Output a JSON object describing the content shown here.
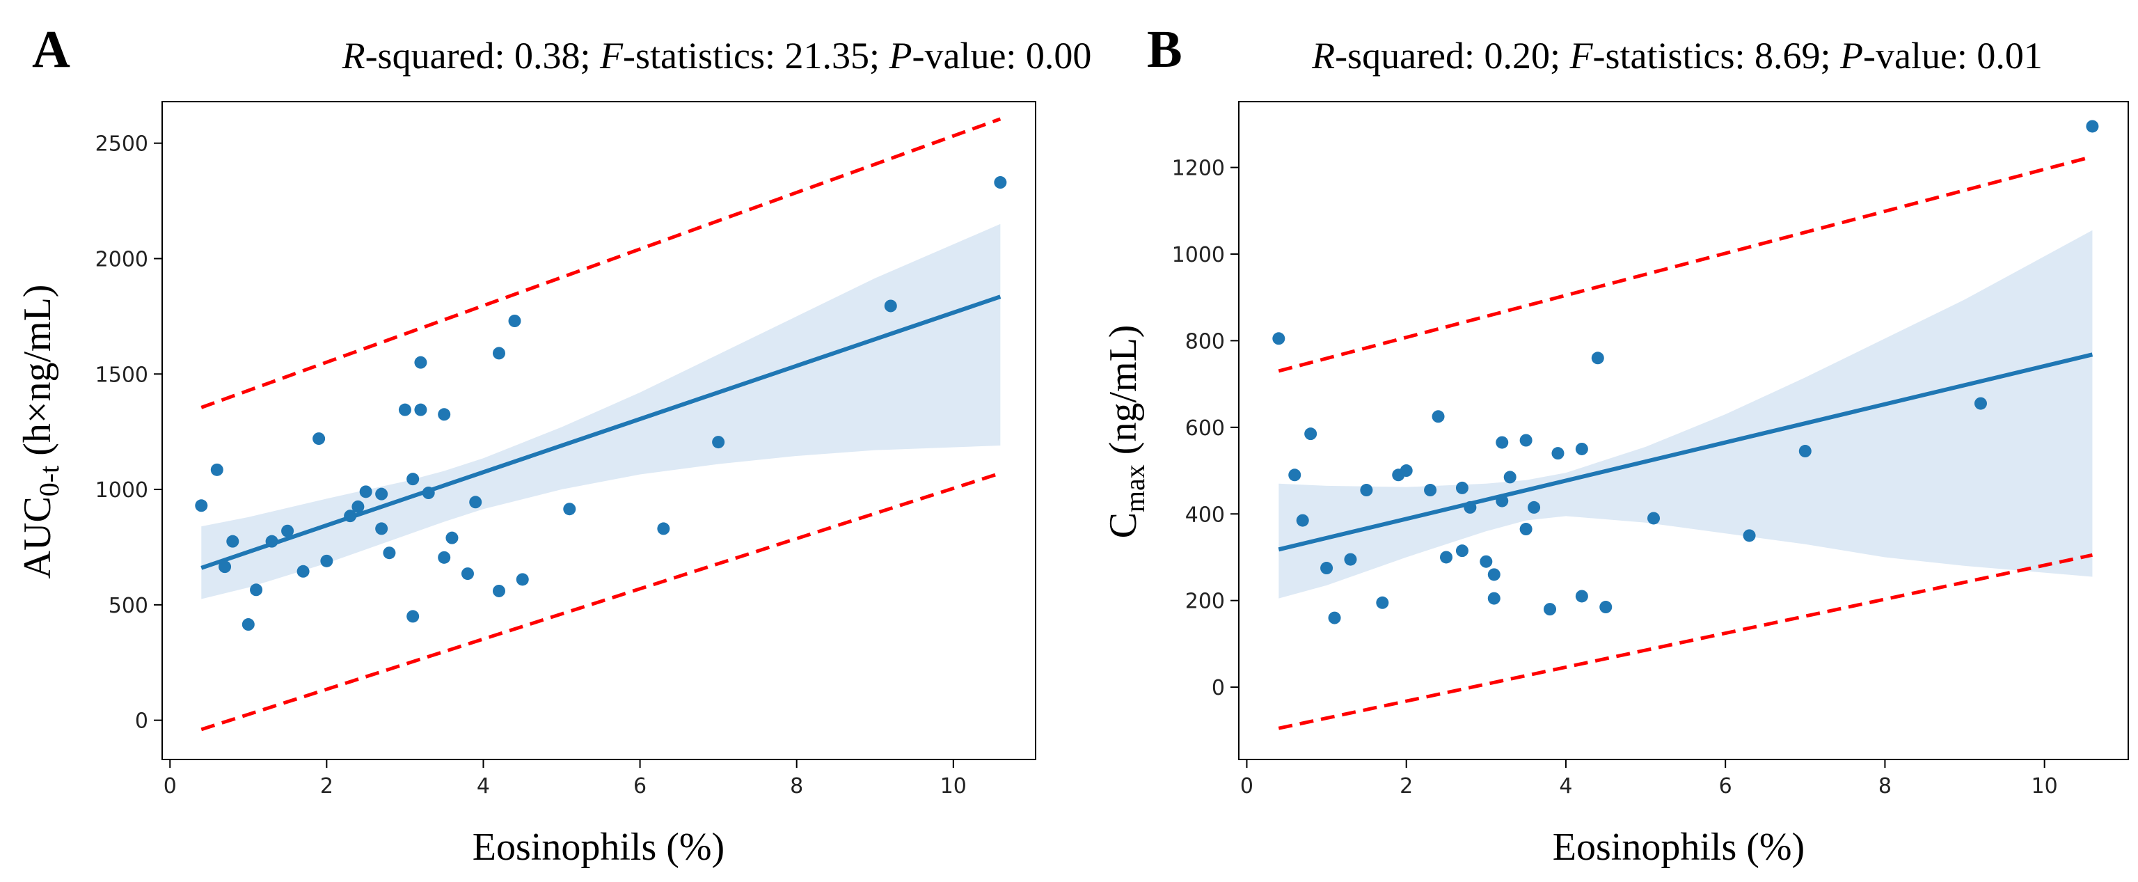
{
  "chart_data": [
    {
      "type": "scatter",
      "panel": "A",
      "stats": {
        "r_squared_label": "R",
        "r_squared_rest": "-squared: 0.38;",
        "f_label": "F",
        "f_rest": "-statistics: 21.35;",
        "p_label": "P",
        "p_rest": "-value: 0.00"
      },
      "xlabel": "Eosinophils (%)",
      "ylabel_main": "AUC",
      "ylabel_sub": "0-t",
      "ylabel_rest": " (h×ng/mL)",
      "xlim": [
        -0.1,
        11.05
      ],
      "ylim": [
        -170,
        2680
      ],
      "xticks": [
        0,
        2,
        4,
        6,
        8,
        10
      ],
      "yticks": [
        0,
        500,
        1000,
        1500,
        2000,
        2500
      ],
      "fit": {
        "x": [
          0.4,
          10.6
        ],
        "y": [
          660,
          1835
        ]
      },
      "ci_band": {
        "x": [
          0.4,
          1,
          2,
          3,
          3.5,
          4,
          5,
          6,
          7,
          8,
          9,
          10.6
        ],
        "upper": [
          840,
          880,
          960,
          1035,
          1080,
          1135,
          1270,
          1420,
          1585,
          1750,
          1915,
          2150
        ],
        "lower": [
          525,
          575,
          680,
          800,
          860,
          915,
          1000,
          1065,
          1110,
          1145,
          1170,
          1190
        ]
      },
      "pi_upper": {
        "x": [
          0.4,
          10.6
        ],
        "y": [
          1355,
          2605
        ]
      },
      "pi_lower": {
        "x": [
          0.4,
          10.6
        ],
        "y": [
          -40,
          1070
        ]
      },
      "points": {
        "x": [
          0.4,
          0.6,
          0.7,
          0.8,
          1.0,
          1.1,
          1.3,
          1.5,
          1.7,
          1.9,
          2.0,
          2.3,
          2.4,
          2.5,
          2.7,
          2.7,
          2.8,
          3.0,
          3.1,
          3.1,
          3.2,
          3.2,
          3.3,
          3.5,
          3.5,
          3.6,
          3.8,
          3.9,
          4.2,
          4.2,
          4.4,
          4.5,
          5.1,
          6.3,
          7.0,
          9.2,
          10.6
        ],
        "y": [
          930,
          1085,
          665,
          775,
          415,
          565,
          775,
          820,
          645,
          1220,
          690,
          885,
          925,
          990,
          980,
          830,
          725,
          1345,
          1045,
          450,
          1550,
          1345,
          985,
          1325,
          705,
          790,
          635,
          945,
          1590,
          560,
          1730,
          610,
          915,
          830,
          1205,
          1795,
          2330
        ]
      }
    },
    {
      "type": "scatter",
      "panel": "B",
      "stats": {
        "r_squared_label": "R",
        "r_squared_rest": "-squared: 0.20;",
        "f_label": "F",
        "f_rest": "-statistics: 8.69;",
        "p_label": "P",
        "p_rest": "-value: 0.01"
      },
      "xlabel": "Eosinophils (%)",
      "ylabel_main": "C",
      "ylabel_sub": "max",
      "ylabel_rest": " (ng/mL)",
      "xlim": [
        -0.1,
        11.05
      ],
      "ylim": [
        -167,
        1352
      ],
      "xticks": [
        0,
        2,
        4,
        6,
        8,
        10
      ],
      "yticks": [
        0,
        200,
        400,
        600,
        800,
        1000,
        1200
      ],
      "fit": {
        "x": [
          0.4,
          10.6
        ],
        "y": [
          318,
          768
        ]
      },
      "ci_band": {
        "x": [
          0.4,
          1,
          2,
          3,
          3.5,
          4,
          5,
          6,
          7,
          8,
          9,
          10.6
        ],
        "upper": [
          470,
          465,
          462,
          470,
          478,
          495,
          555,
          630,
          715,
          805,
          895,
          1055
        ],
        "lower": [
          205,
          235,
          300,
          360,
          385,
          395,
          380,
          355,
          330,
          300,
          280,
          255
        ]
      },
      "pi_upper": {
        "x": [
          0.4,
          10.6
        ],
        "y": [
          730,
          1225
        ]
      },
      "pi_lower": {
        "x": [
          0.4,
          10.6
        ],
        "y": [
          -95,
          305
        ]
      },
      "points": {
        "x": [
          0.4,
          0.6,
          0.7,
          0.8,
          1.0,
          1.1,
          1.3,
          1.5,
          1.7,
          1.9,
          2.0,
          2.3,
          2.4,
          2.5,
          2.7,
          2.7,
          2.8,
          3.0,
          3.1,
          3.1,
          3.2,
          3.2,
          3.3,
          3.5,
          3.5,
          3.6,
          3.8,
          3.9,
          4.2,
          4.2,
          4.4,
          4.5,
          5.1,
          6.3,
          7.0,
          9.2,
          10.6
        ],
        "y": [
          805,
          490,
          385,
          585,
          275,
          160,
          295,
          455,
          195,
          490,
          500,
          455,
          625,
          300,
          460,
          315,
          415,
          290,
          260,
          205,
          565,
          430,
          485,
          570,
          365,
          415,
          180,
          540,
          210,
          550,
          760,
          185,
          390,
          350,
          545,
          655,
          1295
        ]
      }
    }
  ]
}
